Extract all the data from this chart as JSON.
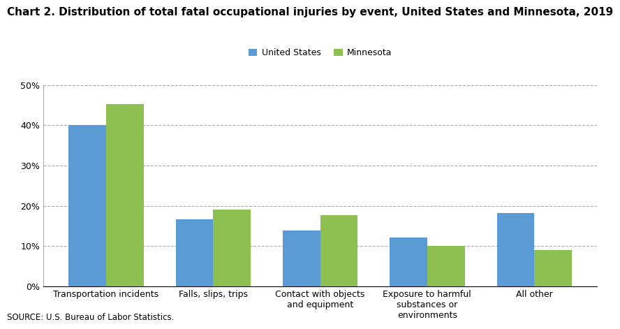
{
  "title": "Chart 2. Distribution of total fatal occupational injuries by event, United States and Minnesota, 2019",
  "categories": [
    "Transportation incidents",
    "Falls, slips, trips",
    "Contact with objects\nand equipment",
    "Exposure to harmful\nsubstances or\nenvironments",
    "All other"
  ],
  "us_values": [
    0.4,
    0.167,
    0.138,
    0.122,
    0.181
  ],
  "mn_values": [
    0.452,
    0.191,
    0.177,
    0.101,
    0.09
  ],
  "us_color": "#5B9BD5",
  "mn_color": "#8DC050",
  "us_label": "United States",
  "mn_label": "Minnesota",
  "ylim": [
    0,
    0.5
  ],
  "yticks": [
    0.0,
    0.1,
    0.2,
    0.3,
    0.4,
    0.5
  ],
  "source": "SOURCE: U.S. Bureau of Labor Statistics.",
  "title_fontsize": 11,
  "axis_fontsize": 9,
  "legend_fontsize": 9,
  "bar_width": 0.35,
  "background_color": "#ffffff",
  "grid_color": "#aaaaaa"
}
